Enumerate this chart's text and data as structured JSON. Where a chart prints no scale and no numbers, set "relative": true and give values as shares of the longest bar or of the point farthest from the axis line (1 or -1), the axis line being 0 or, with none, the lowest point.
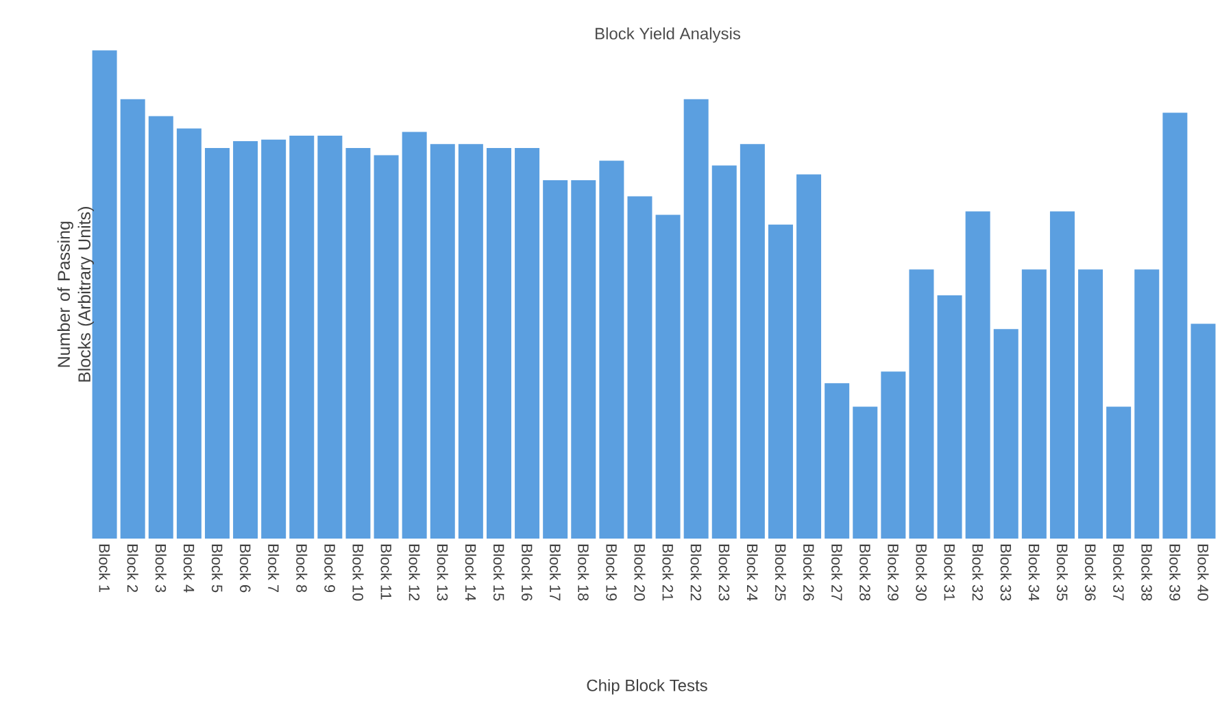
{
  "chart_data": {
    "type": "bar",
    "title": "Block Yield Analysis",
    "xlabel": "Chip Block Tests",
    "ylabel": "Number of Passing Blocks (Arbitrary Units)",
    "relative": true,
    "color": "#5b9fe0",
    "categories": [
      "Block 1",
      "Block 2",
      "Block 3",
      "Block 4",
      "Block 5",
      "Block 6",
      "Block 7",
      "Block 8",
      "Block 9",
      "Block 10",
      "Block 11",
      "Block 12",
      "Block 13",
      "Block 14",
      "Block 15",
      "Block 16",
      "Block 17",
      "Block 18",
      "Block 19",
      "Block 20",
      "Block 21",
      "Block 22",
      "Block 23",
      "Block 24",
      "Block 25",
      "Block 26",
      "Block 27",
      "Block 28",
      "Block 29",
      "Block 30",
      "Block 31",
      "Block 32",
      "Block 33",
      "Block 34",
      "Block 35",
      "Block 36",
      "Block 37",
      "Block 38",
      "Block 39",
      "Block 40"
    ],
    "values": [
      1.0,
      0.9,
      0.865,
      0.84,
      0.8,
      0.814,
      0.817,
      0.825,
      0.825,
      0.8,
      0.785,
      0.833,
      0.808,
      0.808,
      0.8,
      0.8,
      0.734,
      0.734,
      0.774,
      0.701,
      0.663,
      0.9,
      0.764,
      0.808,
      0.643,
      0.746,
      0.318,
      0.27,
      0.342,
      0.551,
      0.498,
      0.67,
      0.429,
      0.551,
      0.67,
      0.551,
      0.27,
      0.551,
      0.872,
      0.44
    ]
  }
}
